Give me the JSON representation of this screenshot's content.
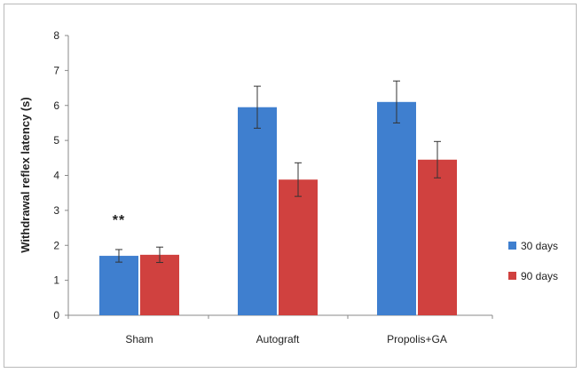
{
  "chart_data": {
    "type": "bar",
    "title": "",
    "xlabel": "",
    "ylabel": "Withdrawal reflex latency (s)",
    "ylim": [
      0,
      8
    ],
    "yticks": [
      0,
      1,
      2,
      3,
      4,
      5,
      6,
      7,
      8
    ],
    "grid": false,
    "legend_position": "right",
    "categories": [
      "Sham",
      "Autograft",
      "Propolis+GA"
    ],
    "series": [
      {
        "name": "30 days",
        "color": "#3f7fcf",
        "values": [
          1.7,
          5.95,
          6.1
        ],
        "errors": [
          0.18,
          0.6,
          0.6
        ]
      },
      {
        "name": "90 days",
        "color": "#d0413f",
        "values": [
          1.73,
          3.88,
          4.45
        ],
        "errors": [
          0.22,
          0.48,
          0.52
        ]
      }
    ],
    "annotations": [
      {
        "text": "**",
        "category": "Sham",
        "y": 2.8
      }
    ]
  }
}
